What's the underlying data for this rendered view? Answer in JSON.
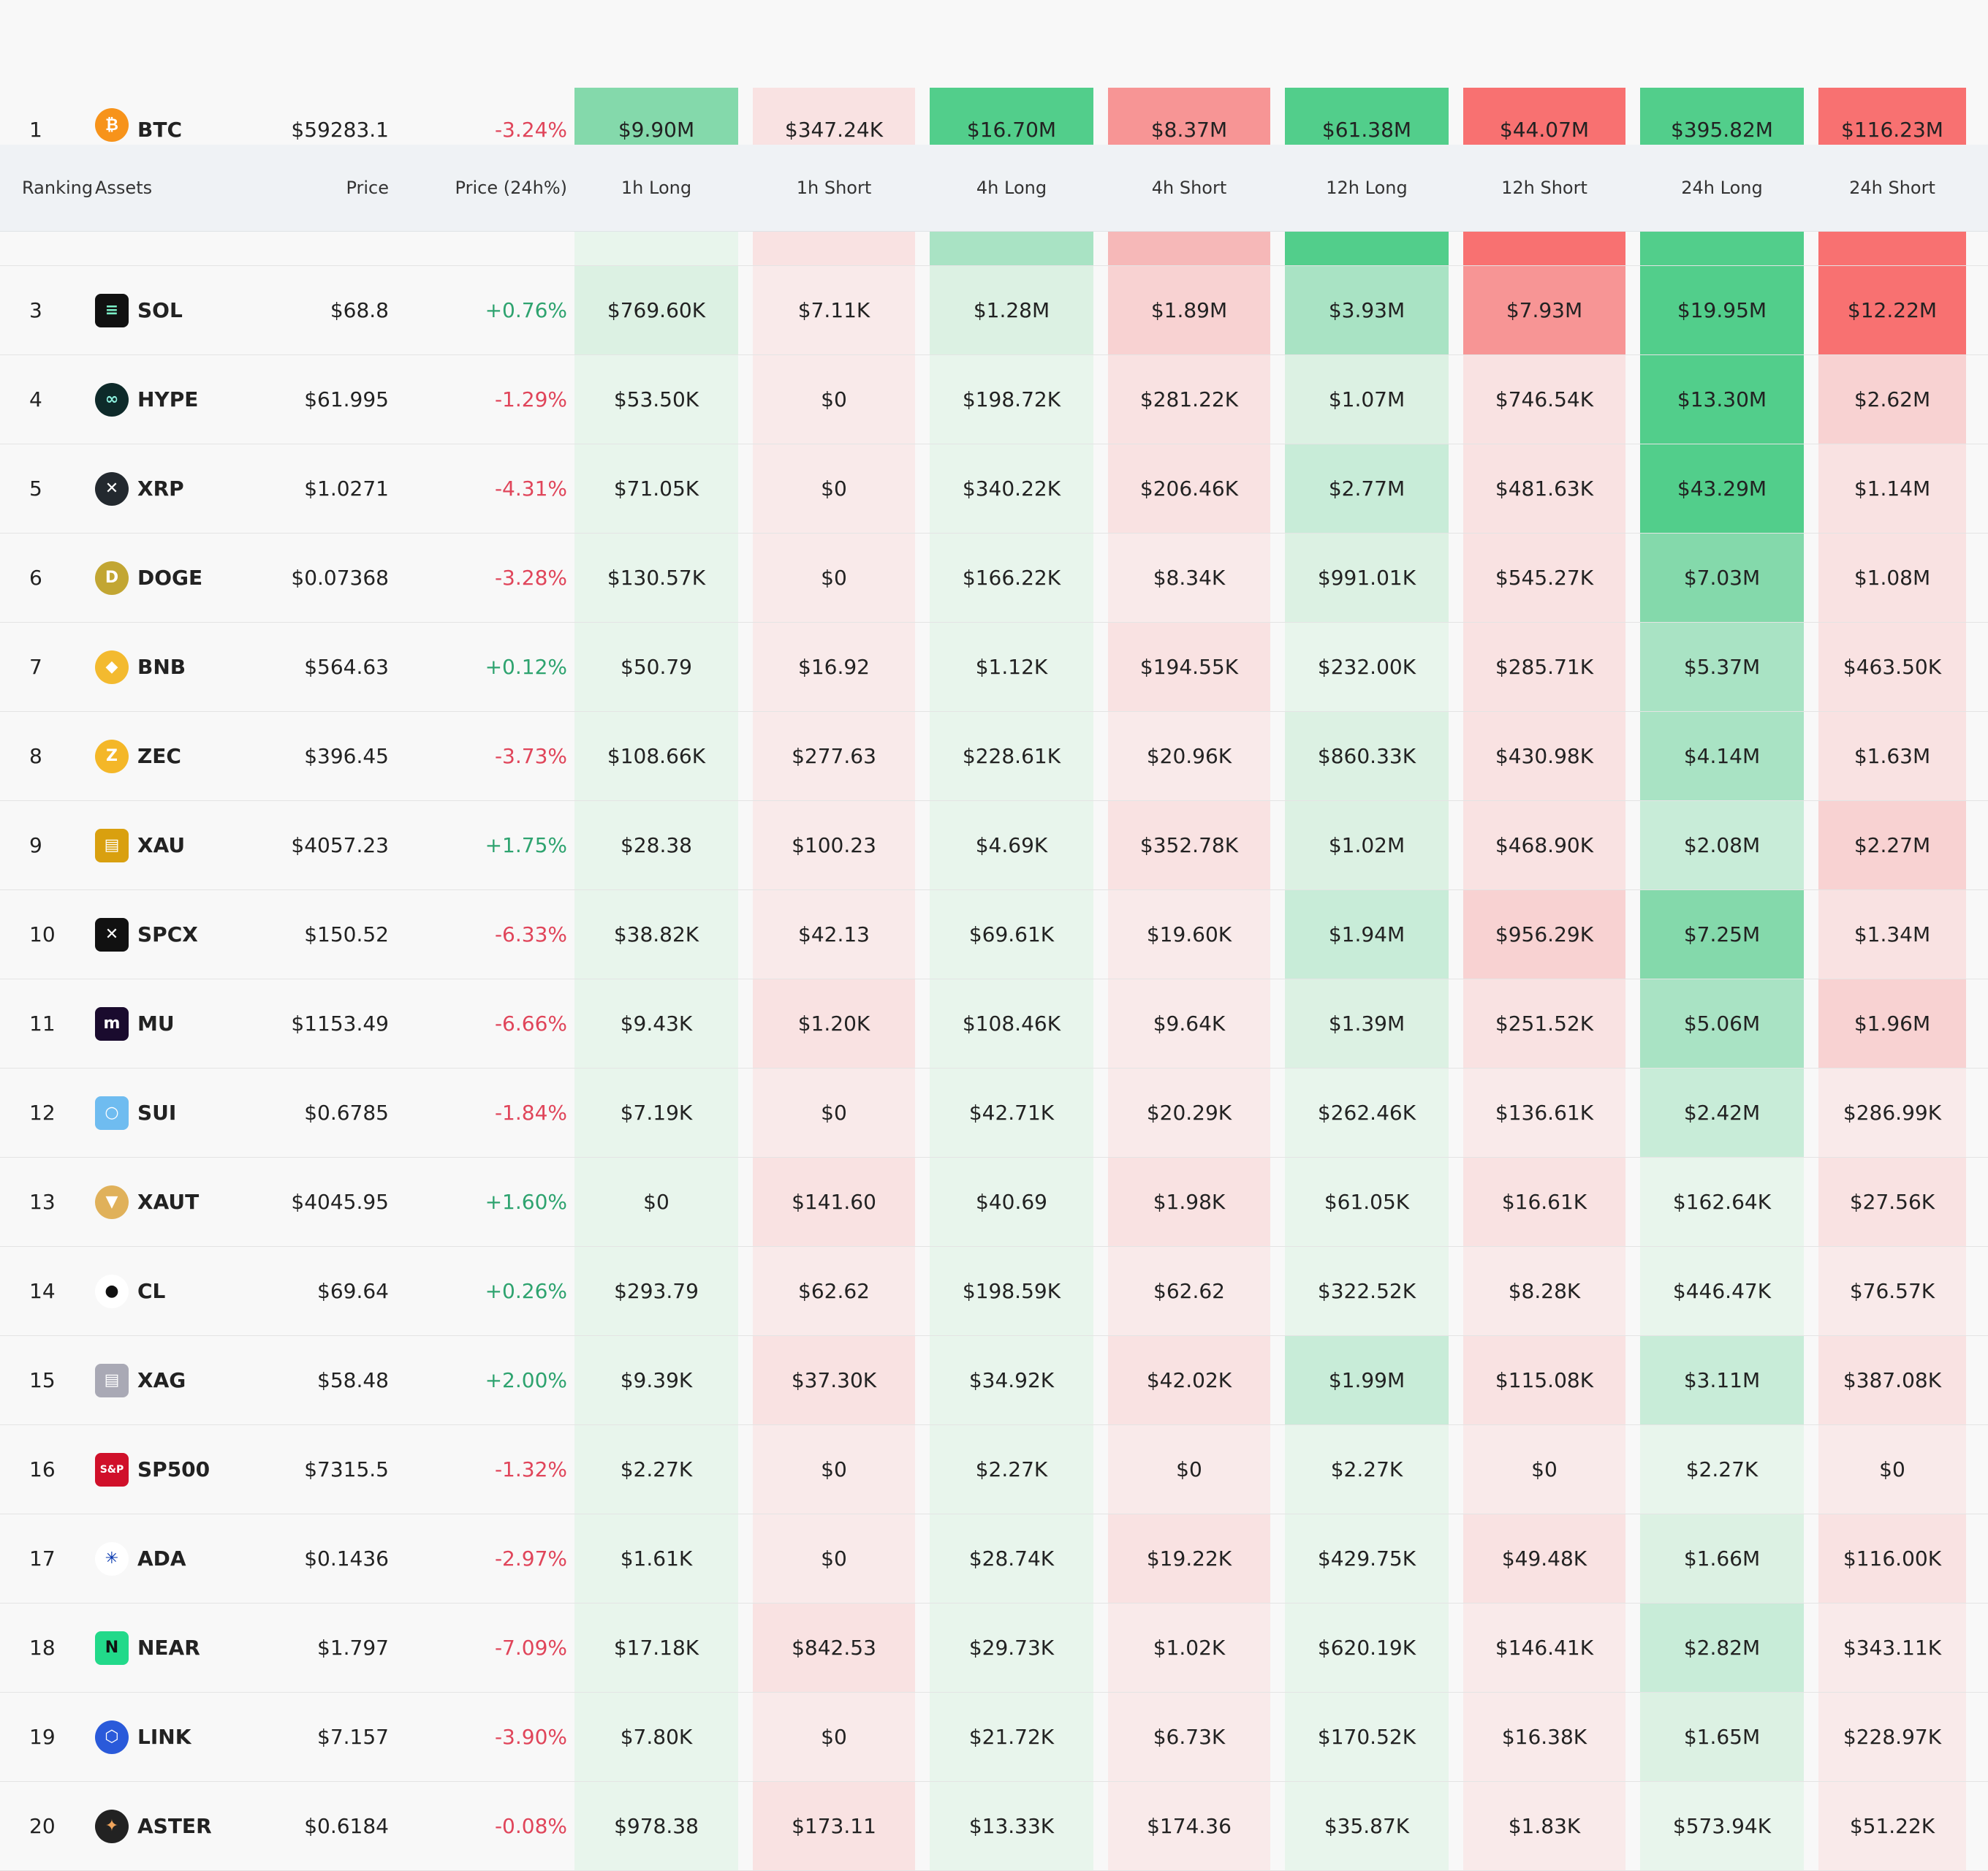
{
  "header": {
    "ranking": "Ranking",
    "assets": "Assets",
    "price": "Price",
    "price_change": "Price (24h%)",
    "cols": [
      "1h Long",
      "1h Short",
      "4h Long",
      "4h Short",
      "12h Long",
      "12h Short",
      "24h Long",
      "24h Short"
    ]
  },
  "colors": {
    "long_scale": [
      "#e8f5ec",
      "#dcf1e3",
      "#c8ecd8",
      "#a9e3c4",
      "#84d9ab",
      "#52ce8b"
    ],
    "short_scale": [
      "#f9eaea",
      "#f9e2e2",
      "#f8d2d2",
      "#f6b8b8",
      "#f79595",
      "#f87171"
    ],
    "positive": "#2ea36f",
    "negative": "#e0455a"
  },
  "rows": [
    {
      "rank": "1",
      "symbol": "BTC",
      "icon": "bitcoin-icon",
      "price": "$59283.1",
      "change": "-3.24%",
      "vals": [
        "$9.90M",
        "$347.24K",
        "$16.70M",
        "$8.37M",
        "$61.38M",
        "$44.07M",
        "$395.82M",
        "$116.23M"
      ],
      "levels": [
        4,
        1,
        5,
        4,
        5,
        5,
        5,
        5
      ]
    },
    {
      "rank": "3",
      "symbol": "SOL",
      "icon": "solana-icon",
      "price": "$68.8",
      "change": "+0.76%",
      "vals": [
        "$769.60K",
        "$7.11K",
        "$1.28M",
        "$1.89M",
        "$3.93M",
        "$7.93M",
        "$19.95M",
        "$12.22M"
      ],
      "levels": [
        1,
        0,
        1,
        2,
        3,
        4,
        5,
        5
      ]
    },
    {
      "rank": "4",
      "symbol": "HYPE",
      "icon": "hyperliquid-icon",
      "price": "$61.995",
      "change": "-1.29%",
      "vals": [
        "$53.50K",
        "$0",
        "$198.72K",
        "$281.22K",
        "$1.07M",
        "$746.54K",
        "$13.30M",
        "$2.62M"
      ],
      "levels": [
        0,
        0,
        0,
        1,
        1,
        1,
        5,
        2
      ]
    },
    {
      "rank": "5",
      "symbol": "XRP",
      "icon": "xrp-icon",
      "price": "$1.0271",
      "change": "-4.31%",
      "vals": [
        "$71.05K",
        "$0",
        "$340.22K",
        "$206.46K",
        "$2.77M",
        "$481.63K",
        "$43.29M",
        "$1.14M"
      ],
      "levels": [
        0,
        0,
        0,
        1,
        2,
        1,
        5,
        1
      ]
    },
    {
      "rank": "6",
      "symbol": "DOGE",
      "icon": "dogecoin-icon",
      "price": "$0.07368",
      "change": "-3.28%",
      "vals": [
        "$130.57K",
        "$0",
        "$166.22K",
        "$8.34K",
        "$991.01K",
        "$545.27K",
        "$7.03M",
        "$1.08M"
      ],
      "levels": [
        0,
        0,
        0,
        0,
        1,
        1,
        4,
        1
      ]
    },
    {
      "rank": "7",
      "symbol": "BNB",
      "icon": "bnb-icon",
      "price": "$564.63",
      "change": "+0.12%",
      "vals": [
        "$50.79",
        "$16.92",
        "$1.12K",
        "$194.55K",
        "$232.00K",
        "$285.71K",
        "$5.37M",
        "$463.50K"
      ],
      "levels": [
        0,
        0,
        0,
        1,
        0,
        1,
        3,
        1
      ]
    },
    {
      "rank": "8",
      "symbol": "ZEC",
      "icon": "zcash-icon",
      "price": "$396.45",
      "change": "-3.73%",
      "vals": [
        "$108.66K",
        "$277.63",
        "$228.61K",
        "$20.96K",
        "$860.33K",
        "$430.98K",
        "$4.14M",
        "$1.63M"
      ],
      "levels": [
        0,
        0,
        0,
        0,
        1,
        1,
        3,
        1
      ]
    },
    {
      "rank": "9",
      "symbol": "XAU",
      "icon": "gold-bars-icon",
      "price": "$4057.23",
      "change": "+1.75%",
      "vals": [
        "$28.38",
        "$100.23",
        "$4.69K",
        "$352.78K",
        "$1.02M",
        "$468.90K",
        "$2.08M",
        "$2.27M"
      ],
      "levels": [
        0,
        0,
        0,
        1,
        1,
        1,
        2,
        2
      ]
    },
    {
      "rank": "10",
      "symbol": "SPCX",
      "icon": "spacex-icon",
      "price": "$150.52",
      "change": "-6.33%",
      "vals": [
        "$38.82K",
        "$42.13",
        "$69.61K",
        "$19.60K",
        "$1.94M",
        "$956.29K",
        "$7.25M",
        "$1.34M"
      ],
      "levels": [
        0,
        0,
        0,
        0,
        2,
        2,
        4,
        1
      ]
    },
    {
      "rank": "11",
      "symbol": "MU",
      "icon": "micron-icon",
      "price": "$1153.49",
      "change": "-6.66%",
      "vals": [
        "$9.43K",
        "$1.20K",
        "$108.46K",
        "$9.64K",
        "$1.39M",
        "$251.52K",
        "$5.06M",
        "$1.96M"
      ],
      "levels": [
        0,
        1,
        0,
        0,
        1,
        1,
        3,
        2
      ]
    },
    {
      "rank": "12",
      "symbol": "SUI",
      "icon": "sui-icon",
      "price": "$0.6785",
      "change": "-1.84%",
      "vals": [
        "$7.19K",
        "$0",
        "$42.71K",
        "$20.29K",
        "$262.46K",
        "$136.61K",
        "$2.42M",
        "$286.99K"
      ],
      "levels": [
        0,
        0,
        0,
        0,
        0,
        0,
        2,
        0
      ]
    },
    {
      "rank": "13",
      "symbol": "XAUT",
      "icon": "tether-gold-icon",
      "price": "$4045.95",
      "change": "+1.60%",
      "vals": [
        "$0",
        "$141.60",
        "$40.69",
        "$1.98K",
        "$61.05K",
        "$16.61K",
        "$162.64K",
        "$27.56K"
      ],
      "levels": [
        0,
        1,
        0,
        1,
        0,
        1,
        0,
        1
      ]
    },
    {
      "rank": "14",
      "symbol": "CL",
      "icon": "oil-drop-icon",
      "price": "$69.64",
      "change": "+0.26%",
      "vals": [
        "$293.79",
        "$62.62",
        "$198.59K",
        "$62.62",
        "$322.52K",
        "$8.28K",
        "$446.47K",
        "$76.57K"
      ],
      "levels": [
        0,
        0,
        0,
        0,
        0,
        0,
        0,
        0
      ]
    },
    {
      "rank": "15",
      "symbol": "XAG",
      "icon": "silver-bars-icon",
      "price": "$58.48",
      "change": "+2.00%",
      "vals": [
        "$9.39K",
        "$37.30K",
        "$34.92K",
        "$42.02K",
        "$1.99M",
        "$115.08K",
        "$3.11M",
        "$387.08K"
      ],
      "levels": [
        0,
        1,
        0,
        1,
        2,
        1,
        2,
        1
      ]
    },
    {
      "rank": "16",
      "symbol": "SP500",
      "icon": "sp500-icon",
      "price": "$7315.5",
      "change": "-1.32%",
      "vals": [
        "$2.27K",
        "$0",
        "$2.27K",
        "$0",
        "$2.27K",
        "$0",
        "$2.27K",
        "$0"
      ],
      "levels": [
        0,
        0,
        0,
        0,
        0,
        0,
        0,
        0
      ]
    },
    {
      "rank": "17",
      "symbol": "ADA",
      "icon": "cardano-icon",
      "price": "$0.1436",
      "change": "-2.97%",
      "vals": [
        "$1.61K",
        "$0",
        "$28.74K",
        "$19.22K",
        "$429.75K",
        "$49.48K",
        "$1.66M",
        "$116.00K"
      ],
      "levels": [
        0,
        0,
        0,
        1,
        0,
        1,
        1,
        1
      ]
    },
    {
      "rank": "18",
      "symbol": "NEAR",
      "icon": "near-icon",
      "price": "$1.797",
      "change": "-7.09%",
      "vals": [
        "$17.18K",
        "$842.53",
        "$29.73K",
        "$1.02K",
        "$620.19K",
        "$146.41K",
        "$2.82M",
        "$343.11K"
      ],
      "levels": [
        0,
        1,
        0,
        0,
        0,
        0,
        2,
        0
      ]
    },
    {
      "rank": "19",
      "symbol": "LINK",
      "icon": "chainlink-icon",
      "price": "$7.157",
      "change": "-3.90%",
      "vals": [
        "$7.80K",
        "$0",
        "$21.72K",
        "$6.73K",
        "$170.52K",
        "$16.38K",
        "$1.65M",
        "$228.97K"
      ],
      "levels": [
        0,
        0,
        0,
        0,
        0,
        0,
        1,
        0
      ]
    },
    {
      "rank": "20",
      "symbol": "ASTER",
      "icon": "aster-icon",
      "price": "$0.6184",
      "change": "-0.08%",
      "vals": [
        "$978.38",
        "$173.11",
        "$13.33K",
        "$174.36",
        "$35.87K",
        "$1.83K",
        "$573.94K",
        "$51.22K"
      ],
      "levels": [
        0,
        1,
        0,
        0,
        0,
        0,
        0,
        0
      ]
    }
  ],
  "partial_row_levels": [
    0,
    1,
    3,
    3,
    5,
    5,
    5,
    5
  ]
}
